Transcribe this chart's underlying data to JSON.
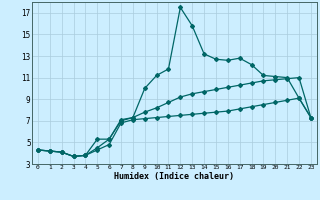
{
  "title": "",
  "xlabel": "Humidex (Indice chaleur)",
  "bg_color": "#cceeff",
  "grid_color": "#aaccdd",
  "line_color": "#006666",
  "xlim": [
    -0.5,
    23.5
  ],
  "ylim": [
    3,
    18
  ],
  "xtick_labels": [
    "0",
    "1",
    "2",
    "3",
    "4",
    "5",
    "6",
    "7",
    "8",
    "9",
    "10",
    "11",
    "12",
    "13",
    "14",
    "15",
    "16",
    "17",
    "18",
    "19",
    "20",
    "21",
    "22",
    "23"
  ],
  "ytick_vals": [
    3,
    5,
    7,
    9,
    11,
    13,
    15,
    17
  ],
  "line1_x": [
    0,
    1,
    2,
    3,
    4,
    5,
    6,
    7,
    8,
    9,
    10,
    11,
    12,
    13,
    14,
    15,
    16,
    17,
    18,
    19,
    20,
    21,
    22,
    23
  ],
  "line1_y": [
    4.3,
    4.2,
    4.1,
    3.7,
    3.8,
    5.3,
    5.3,
    7.1,
    7.3,
    10.0,
    11.2,
    11.8,
    17.5,
    15.8,
    13.2,
    12.7,
    12.6,
    12.8,
    12.2,
    11.2,
    11.1,
    11.0,
    9.1,
    7.3
  ],
  "line2_x": [
    0,
    1,
    2,
    3,
    4,
    5,
    6,
    7,
    8,
    9,
    10,
    11,
    12,
    13,
    14,
    15,
    16,
    17,
    18,
    19,
    20,
    21,
    22,
    23
  ],
  "line2_y": [
    4.3,
    4.2,
    4.1,
    3.7,
    3.8,
    4.5,
    5.3,
    7.0,
    7.3,
    7.8,
    8.2,
    8.7,
    9.2,
    9.5,
    9.7,
    9.9,
    10.1,
    10.3,
    10.5,
    10.7,
    10.8,
    10.9,
    11.0,
    7.3
  ],
  "line3_x": [
    0,
    1,
    2,
    3,
    4,
    5,
    6,
    7,
    8,
    9,
    10,
    11,
    12,
    13,
    14,
    15,
    16,
    17,
    18,
    19,
    20,
    21,
    22,
    23
  ],
  "line3_y": [
    4.3,
    4.2,
    4.1,
    3.7,
    3.8,
    4.3,
    4.8,
    6.8,
    7.1,
    7.2,
    7.3,
    7.4,
    7.5,
    7.6,
    7.7,
    7.8,
    7.9,
    8.1,
    8.3,
    8.5,
    8.7,
    8.9,
    9.1,
    7.3
  ]
}
